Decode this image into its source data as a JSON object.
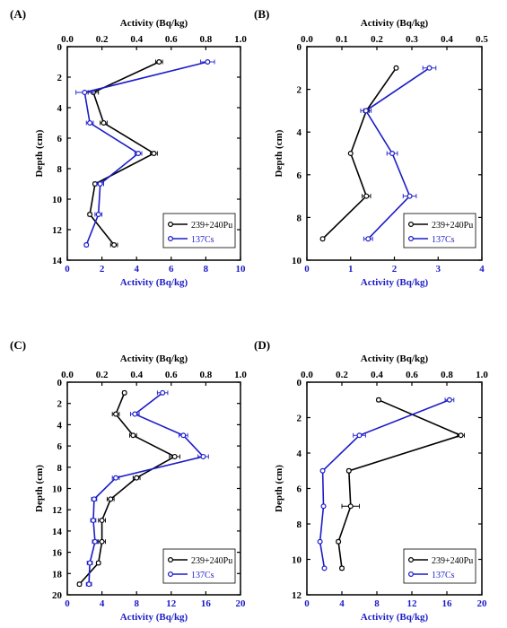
{
  "colors": {
    "pu": "#000000",
    "cs": "#1c1cc8"
  },
  "chart_data": [
    {
      "panel_label": "(A)",
      "type": "line",
      "top_axis": {
        "title": "Activity (Bq/kg)",
        "range": [
          0,
          1.0
        ],
        "ticks": [
          "0.0",
          "0.2",
          "0.4",
          "0.6",
          "0.8",
          "1.0"
        ]
      },
      "bottom_axis": {
        "title": "Activity (Bq/kg)",
        "range": [
          0,
          10
        ],
        "ticks": [
          "0",
          "2",
          "4",
          "6",
          "8",
          "10"
        ]
      },
      "ylabel": "Depth (cm)",
      "ylim": [
        0,
        14
      ],
      "yticks": [
        "0",
        "2",
        "4",
        "6",
        "8",
        "10",
        "12",
        "14"
      ],
      "legend": {
        "pu": "239+240Pu",
        "cs": "137Cs"
      },
      "series": [
        {
          "key": "pu",
          "axis": "top",
          "depth": [
            1,
            3,
            5,
            7,
            9,
            11,
            13
          ],
          "values": [
            0.53,
            0.15,
            0.21,
            0.5,
            0.16,
            0.13,
            0.27
          ],
          "err": [
            0.02,
            0.03,
            0.02,
            0.02,
            0.01,
            0.01,
            0.02
          ]
        },
        {
          "key": "cs",
          "axis": "bottom",
          "depth": [
            1,
            3,
            5,
            7,
            9,
            11,
            13
          ],
          "values": [
            8.1,
            1.0,
            1.3,
            4.1,
            1.9,
            1.8,
            1.1
          ],
          "err": [
            0.4,
            0.5,
            0.2,
            0.2,
            0.2,
            0.2,
            0.1
          ]
        }
      ]
    },
    {
      "panel_label": "(B)",
      "type": "line",
      "top_axis": {
        "title": "Activity (Bq/kg)",
        "range": [
          0,
          0.5
        ],
        "ticks": [
          "0.0",
          "0.1",
          "0.2",
          "0.3",
          "0.4",
          "0.5"
        ]
      },
      "bottom_axis": {
        "title": "Activity (Bq/kg)",
        "range": [
          0,
          4
        ],
        "ticks": [
          "0",
          "1",
          "2",
          "3",
          "4"
        ]
      },
      "ylabel": "Depth (cm)",
      "ylim": [
        0,
        10
      ],
      "yticks": [
        "0",
        "2",
        "4",
        "6",
        "8",
        "10"
      ],
      "legend": {
        "pu": "239+240Pu",
        "cs": "137Cs"
      },
      "series": [
        {
          "key": "pu",
          "axis": "top",
          "depth": [
            1,
            3,
            5,
            7,
            9
          ],
          "values": [
            0.255,
            0.17,
            0.125,
            0.17,
            0.045
          ],
          "err": [
            0.004,
            0.008,
            0.003,
            0.012,
            0.004
          ]
        },
        {
          "key": "cs",
          "axis": "bottom",
          "depth": [
            1,
            3,
            5,
            7,
            9
          ],
          "values": [
            2.8,
            1.35,
            1.95,
            2.35,
            1.4
          ],
          "err": [
            0.15,
            0.12,
            0.12,
            0.15,
            0.1
          ]
        }
      ]
    },
    {
      "panel_label": "(C)",
      "type": "line",
      "top_axis": {
        "title": "Activity (Bq/kg)",
        "range": [
          0,
          1.0
        ],
        "ticks": [
          "0.0",
          "0.2",
          "0.4",
          "0.6",
          "0.8",
          "1.0"
        ]
      },
      "bottom_axis": {
        "title": "Activity (Bq/kg)",
        "range": [
          0,
          20
        ],
        "ticks": [
          "0",
          "4",
          "8",
          "12",
          "16",
          "20"
        ]
      },
      "ylabel": "Depth (cm)",
      "ylim": [
        0,
        20
      ],
      "yticks": [
        "0",
        "2",
        "4",
        "6",
        "8",
        "10",
        "12",
        "14",
        "16",
        "18",
        "20"
      ],
      "legend": {
        "pu": "239+240Pu",
        "cs": "137Cs"
      },
      "series": [
        {
          "key": "pu",
          "axis": "top",
          "depth": [
            1,
            3,
            5,
            7,
            9,
            11,
            13,
            15,
            17,
            19
          ],
          "values": [
            0.33,
            0.28,
            0.38,
            0.62,
            0.4,
            0.25,
            0.2,
            0.2,
            0.18,
            0.07
          ],
          "err": [
            0.01,
            0.02,
            0.02,
            0.03,
            0.02,
            0.02,
            0.02,
            0.02,
            0.01,
            0.01
          ]
        },
        {
          "key": "cs",
          "axis": "bottom",
          "depth": [
            1,
            3,
            5,
            7,
            9,
            11,
            13,
            15,
            17,
            19
          ],
          "values": [
            11.0,
            7.8,
            13.4,
            15.7,
            5.6,
            3.1,
            3.0,
            3.2,
            2.6,
            2.5
          ],
          "err": [
            0.6,
            0.5,
            0.5,
            0.6,
            0.4,
            0.3,
            0.3,
            0.3,
            0.3,
            0.3
          ]
        }
      ]
    },
    {
      "panel_label": "(D)",
      "type": "line",
      "top_axis": {
        "title": "Activity (Bq/kg)",
        "range": [
          0,
          1.0
        ],
        "ticks": [
          "0.0",
          "0.2",
          "0.4",
          "0.6",
          "0.8",
          "1.0"
        ]
      },
      "bottom_axis": {
        "title": "Activity (Bq/kg)",
        "range": [
          0,
          20
        ],
        "ticks": [
          "0",
          "4",
          "8",
          "12",
          "16",
          "20"
        ]
      },
      "ylabel": "Depth (cm)",
      "ylim": [
        0,
        12
      ],
      "yticks": [
        "0",
        "2",
        "4",
        "6",
        "8",
        "10",
        "12"
      ],
      "legend": {
        "pu": "239+240Pu",
        "cs": "137Cs"
      },
      "series": [
        {
          "key": "pu",
          "axis": "top",
          "depth": [
            1,
            3,
            5,
            7,
            9,
            10.5
          ],
          "values": [
            0.41,
            0.88,
            0.24,
            0.25,
            0.18,
            0.2
          ],
          "err": [
            0.01,
            0.02,
            0.01,
            0.05,
            0.01,
            0.01
          ]
        },
        {
          "key": "cs",
          "axis": "bottom",
          "depth": [
            1,
            3,
            5,
            7,
            9,
            10.5
          ],
          "values": [
            16.3,
            6.0,
            1.8,
            1.9,
            1.5,
            2.0
          ],
          "err": [
            0.5,
            0.7,
            0.1,
            0.1,
            0.1,
            0.1
          ]
        }
      ]
    }
  ]
}
